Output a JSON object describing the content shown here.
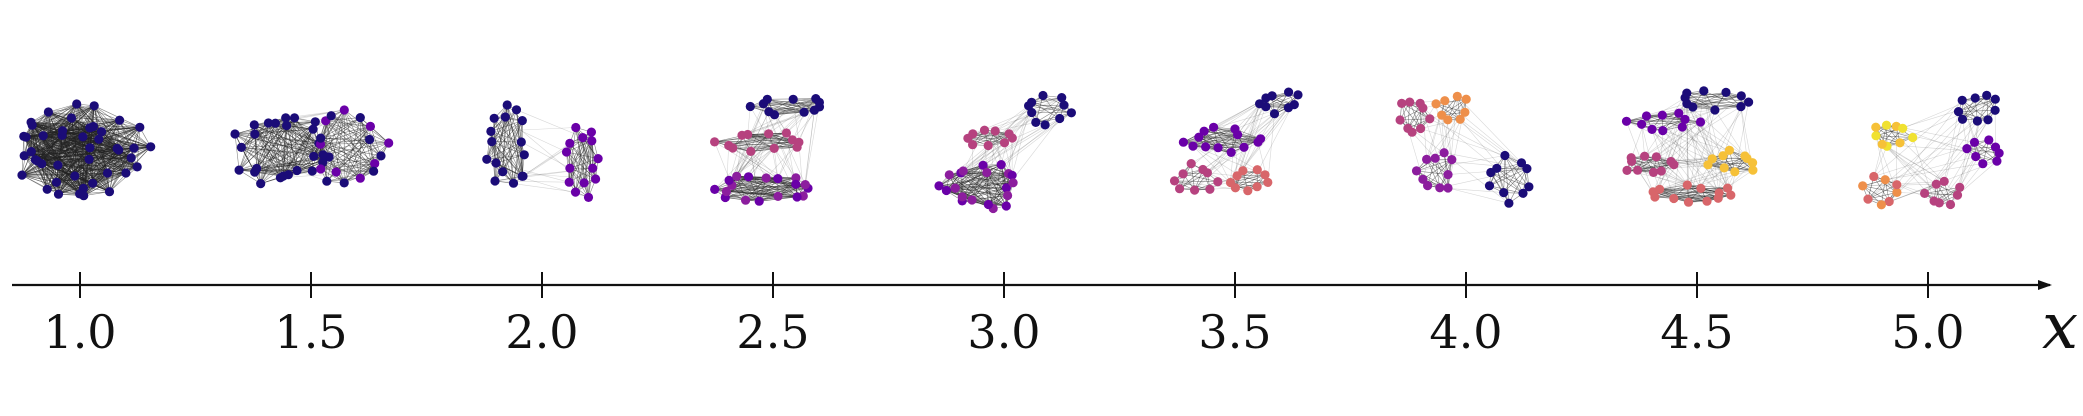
{
  "axis": {
    "symbol": "x",
    "ticks": [
      "1.0",
      "1.5",
      "2.0",
      "2.5",
      "3.0",
      "3.5",
      "4.0",
      "4.5",
      "5.0"
    ]
  },
  "palette": [
    "#1b0c78",
    "#6a00a8",
    "#8c1d9e",
    "#b6427f",
    "#d8666a",
    "#ee8f4a",
    "#f6c138",
    "#f0e130"
  ],
  "graphs": [
    {
      "x": 1.0,
      "clusters": 1
    },
    {
      "x": 1.5,
      "clusters": 2
    },
    {
      "x": 2.0,
      "clusters": 2
    },
    {
      "x": 2.5,
      "clusters": 3
    },
    {
      "x": 3.0,
      "clusters": 3
    },
    {
      "x": 3.5,
      "clusters": 4
    },
    {
      "x": 4.0,
      "clusters": 4
    },
    {
      "x": 4.5,
      "clusters": 5
    },
    {
      "x": 5.0,
      "clusters": 5
    }
  ]
}
